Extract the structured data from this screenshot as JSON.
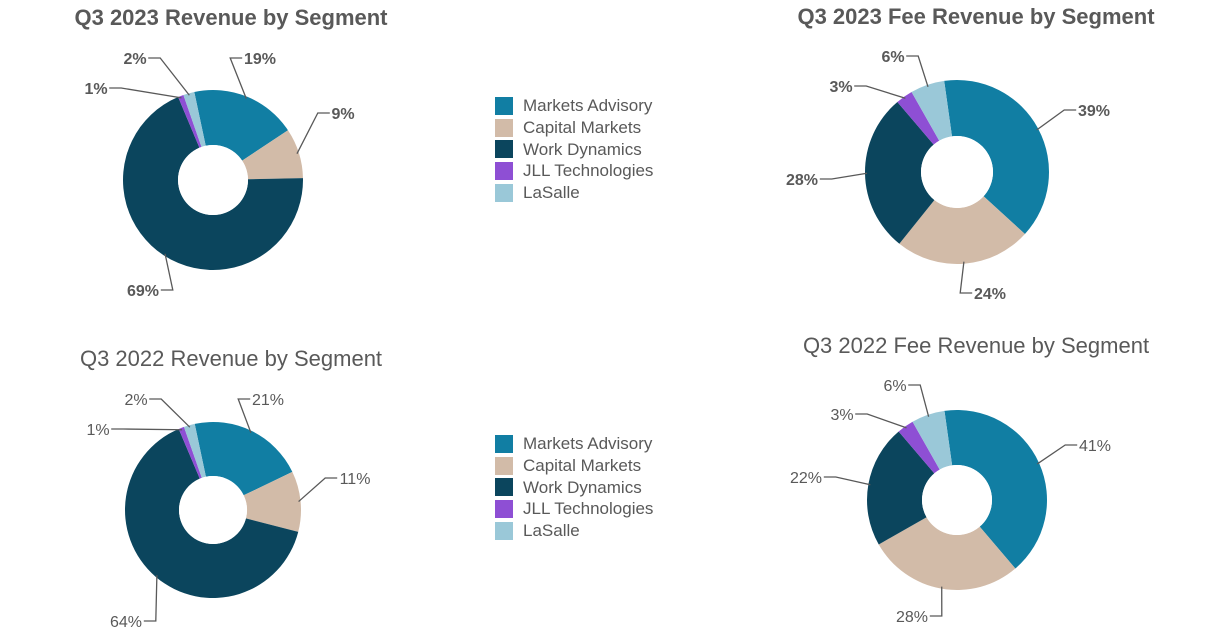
{
  "segments": [
    {
      "name": "Markets Advisory",
      "color": "#117ea3"
    },
    {
      "name": "Capital Markets",
      "color": "#d2bba8"
    },
    {
      "name": "Work Dynamics",
      "color": "#0b455d"
    },
    {
      "name": "JLL Technologies",
      "color": "#8e4fd4"
    },
    {
      "name": "LaSalle",
      "color": "#9ac8d8"
    }
  ],
  "chart_data": [
    {
      "type": "pie",
      "variant": "donut",
      "title": "Q3 2023 Revenue by Segment",
      "categories": [
        "Markets Advisory",
        "Capital Markets",
        "Work Dynamics",
        "JLL Technologies",
        "LaSalle"
      ],
      "values": [
        19,
        9,
        69,
        1,
        2
      ],
      "labels": [
        "19%",
        "9%",
        "69%",
        "1%",
        "2%"
      ],
      "legend": "right"
    },
    {
      "type": "pie",
      "variant": "donut",
      "title": "Q3 2023 Fee Revenue by Segment",
      "categories": [
        "Markets Advisory",
        "Capital Markets",
        "Work Dynamics",
        "JLL Technologies",
        "LaSalle"
      ],
      "values": [
        39,
        24,
        28,
        3,
        6
      ],
      "labels": [
        "39%",
        "24%",
        "28%",
        "3%",
        "6%"
      ]
    },
    {
      "type": "pie",
      "variant": "donut",
      "title": "Q3 2022 Revenue by Segment",
      "categories": [
        "Markets Advisory",
        "Capital Markets",
        "Work Dynamics",
        "JLL Technologies",
        "LaSalle"
      ],
      "values": [
        21,
        11,
        64,
        1,
        2
      ],
      "labels": [
        "21%",
        "11%",
        "64%",
        "1%",
        "2%"
      ],
      "legend": "right"
    },
    {
      "type": "pie",
      "variant": "donut",
      "title": "Q3 2022 Fee Revenue by Segment",
      "categories": [
        "Markets Advisory",
        "Capital Markets",
        "Work Dynamics",
        "JLL Technologies",
        "LaSalle"
      ],
      "values": [
        41,
        28,
        22,
        3,
        6
      ],
      "labels": [
        "41%",
        "28%",
        "22%",
        "3%",
        "6%"
      ]
    }
  ]
}
